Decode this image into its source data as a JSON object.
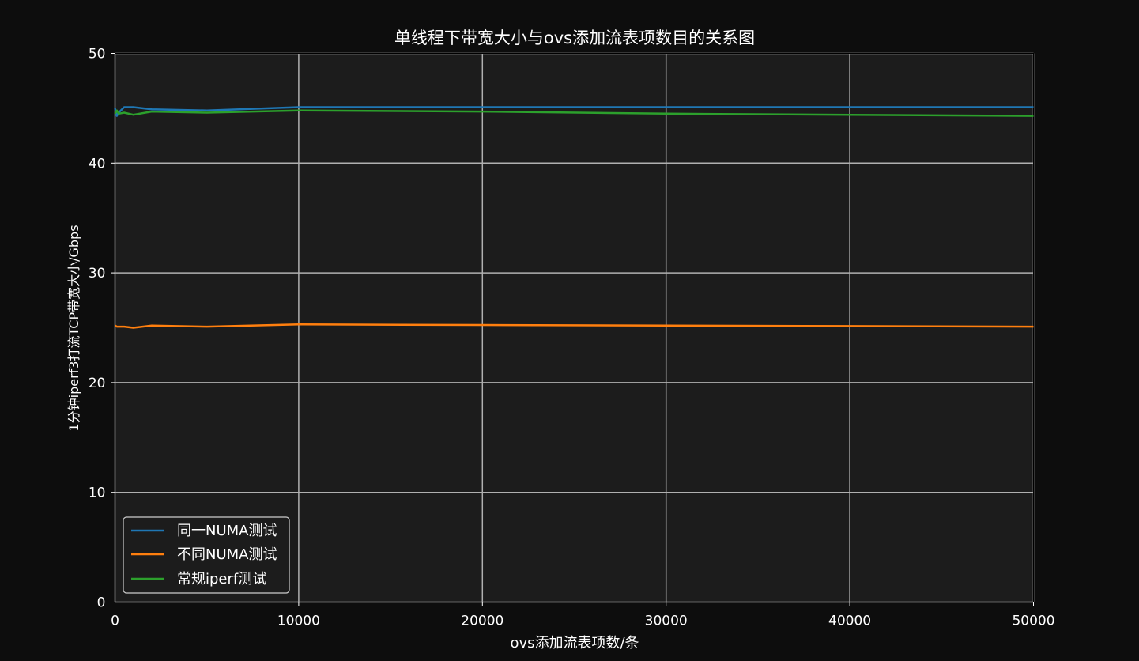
{
  "chart_data": {
    "type": "line",
    "title": "单线程下带宽大小与ovs添加流表项数目的关系图",
    "xlabel": "ovs添加流表项数/条",
    "ylabel": "1分钟iperf3打流TCP带宽大小/Gbps",
    "xlim": [
      0,
      50000
    ],
    "ylim": [
      0,
      50
    ],
    "xticks": [
      0,
      10000,
      20000,
      30000,
      40000,
      50000
    ],
    "yticks": [
      0,
      10,
      20,
      30,
      40,
      50
    ],
    "grid": true,
    "legend_position": "lower-left",
    "x": [
      0,
      100,
      200,
      500,
      1000,
      2000,
      5000,
      10000,
      20000,
      30000,
      40000,
      50000
    ],
    "series": [
      {
        "name": "同一NUMA测试",
        "color": "#1f77b4",
        "values": [
          45.0,
          44.3,
          44.6,
          45.1,
          45.1,
          44.9,
          44.8,
          45.1,
          45.1,
          45.1,
          45.1,
          45.1
        ]
      },
      {
        "name": "不同NUMA测试",
        "color": "#ff7f0e",
        "values": [
          25.2,
          25.1,
          25.1,
          25.1,
          25.0,
          25.2,
          25.1,
          25.3,
          25.25,
          25.2,
          25.15,
          25.1
        ]
      },
      {
        "name": "常规iperf测试",
        "color": "#2ca02c",
        "values": [
          44.5,
          44.8,
          44.5,
          44.6,
          44.4,
          44.7,
          44.6,
          44.8,
          44.7,
          44.5,
          44.4,
          44.3
        ]
      }
    ]
  },
  "colors": {
    "page_background": "#0d0d0d",
    "plot_background": "#1c1c1c",
    "grid": "#b0b0b0",
    "text": "#ffffff"
  }
}
